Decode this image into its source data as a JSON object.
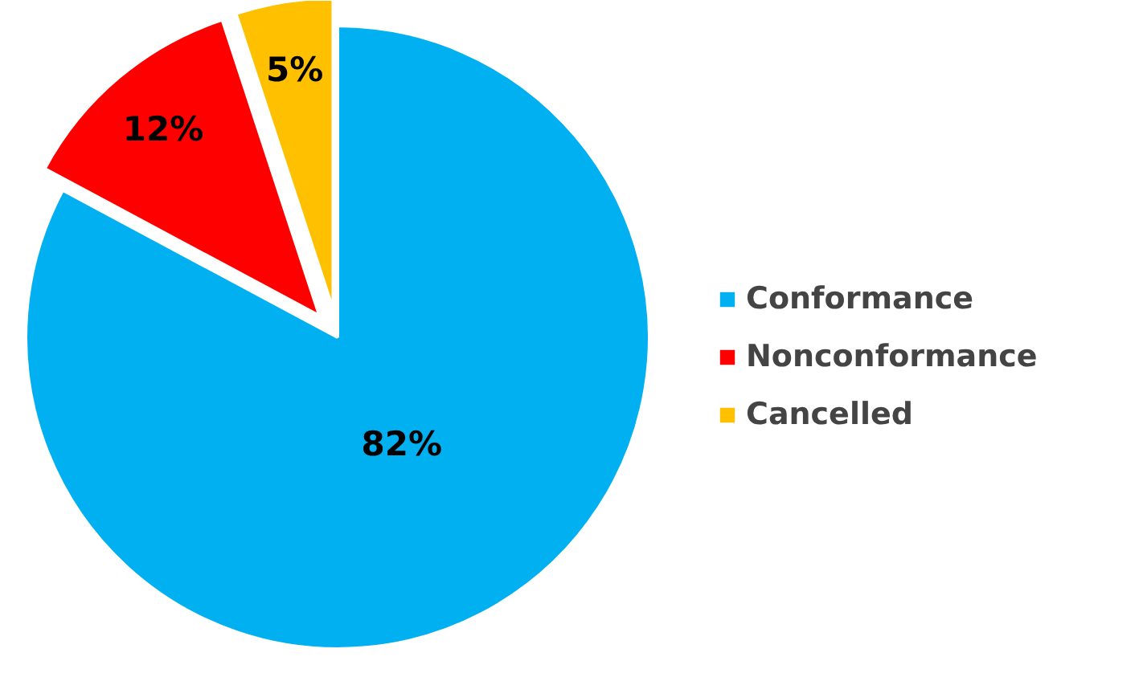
{
  "chart_data": {
    "type": "pie",
    "categories": [
      "Conformance",
      "Nonconformance",
      "Cancelled"
    ],
    "values": [
      82,
      12,
      5
    ],
    "colors": [
      "#00b0f0",
      "#ff0000",
      "#ffc000"
    ],
    "value_labels": [
      "82%",
      "12%",
      "5%"
    ],
    "legend": "right"
  }
}
